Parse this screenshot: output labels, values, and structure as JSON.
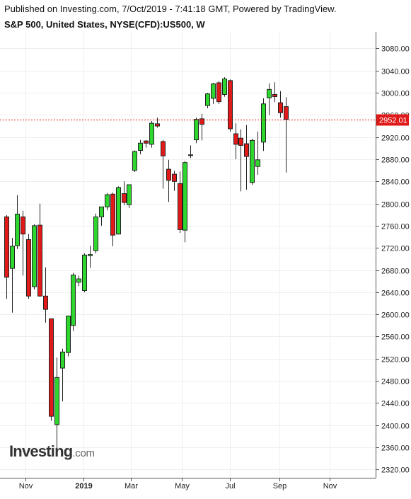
{
  "header": {
    "published": "Published on Investing.com, 7/Oct/2019 - 7:41:18 GMT, Powered by TradingView.",
    "symbol": "S&P 500, United States, NYSE(CFD):US500, W"
  },
  "logo": {
    "brand": "Investing",
    "domain": ".com"
  },
  "colors": {
    "up": "#2ed72e",
    "down": "#e01919",
    "price_line": "#e01919",
    "grid": "#eeeeee"
  },
  "chart_data": {
    "type": "candlestick",
    "interval": "W",
    "ylim": [
      2305,
      3110
    ],
    "y_ticks": [
      2320,
      2360,
      2400,
      2440,
      2480,
      2520,
      2560,
      2600,
      2640,
      2680,
      2720,
      2760,
      2800,
      2840,
      2880,
      2920,
      2960,
      3000,
      3040,
      3080
    ],
    "y_tick_labels": [
      "2320.00",
      "2360.00",
      "2400.00",
      "2440.00",
      "2480.00",
      "2520.00",
      "2560.00",
      "2600.00",
      "2640.00",
      "2680.00",
      "2720.00",
      "2760.00",
      "2800.00",
      "2840.00",
      "2880.00",
      "2920.00",
      "2960.00",
      "3000.00",
      "3040.00",
      "3080.00"
    ],
    "x_labels": [
      {
        "label": "Nov",
        "index": 3.5,
        "bold": false
      },
      {
        "label": "2019",
        "index": 13.8,
        "bold": true
      },
      {
        "label": "Mar",
        "index": 22.3,
        "bold": false
      },
      {
        "label": "May",
        "index": 31.4,
        "bold": false
      },
      {
        "label": "Jul",
        "index": 40.0,
        "bold": false
      },
      {
        "label": "Sep",
        "index": 48.9,
        "bold": false
      },
      {
        "label": "Nov",
        "index": 57.9,
        "bold": false
      }
    ],
    "last_price": 2952.01,
    "last_price_label": "2952.01",
    "candles": [
      {
        "o": 2776,
        "h": 2779,
        "l": 2628,
        "c": 2667
      },
      {
        "o": 2683,
        "h": 2738,
        "l": 2603,
        "c": 2723
      },
      {
        "o": 2724,
        "h": 2815,
        "l": 2718,
        "c": 2781
      },
      {
        "o": 2776,
        "h": 2787,
        "l": 2670,
        "c": 2745
      },
      {
        "o": 2735,
        "h": 2745,
        "l": 2628,
        "c": 2633
      },
      {
        "o": 2650,
        "h": 2763,
        "l": 2645,
        "c": 2760
      },
      {
        "o": 2761,
        "h": 2800,
        "l": 2632,
        "c": 2633
      },
      {
        "o": 2633,
        "h": 2685,
        "l": 2585,
        "c": 2609
      },
      {
        "o": 2592,
        "h": 2592,
        "l": 2408,
        "c": 2416
      },
      {
        "o": 2401,
        "h": 2522,
        "l": 2347,
        "c": 2486
      },
      {
        "o": 2503,
        "h": 2538,
        "l": 2443,
        "c": 2532
      },
      {
        "o": 2531,
        "h": 2598,
        "l": 2524,
        "c": 2597
      },
      {
        "o": 2580,
        "h": 2675,
        "l": 2570,
        "c": 2671
      },
      {
        "o": 2658,
        "h": 2670,
        "l": 2651,
        "c": 2664
      },
      {
        "o": 2643,
        "h": 2710,
        "l": 2640,
        "c": 2707
      },
      {
        "o": 2706,
        "h": 2724,
        "l": 2684,
        "c": 2708
      },
      {
        "o": 2715,
        "h": 2782,
        "l": 2710,
        "c": 2776
      },
      {
        "o": 2776,
        "h": 2792,
        "l": 2760,
        "c": 2794
      },
      {
        "o": 2794,
        "h": 2819,
        "l": 2788,
        "c": 2816
      },
      {
        "o": 2817,
        "h": 2820,
        "l": 2723,
        "c": 2743
      },
      {
        "o": 2745,
        "h": 2831,
        "l": 2744,
        "c": 2829
      },
      {
        "o": 2818,
        "h": 2840,
        "l": 2797,
        "c": 2802
      },
      {
        "o": 2798,
        "h": 2833,
        "l": 2792,
        "c": 2834
      },
      {
        "o": 2860,
        "h": 2896,
        "l": 2857,
        "c": 2894
      },
      {
        "o": 2896,
        "h": 2915,
        "l": 2889,
        "c": 2909
      },
      {
        "o": 2913,
        "h": 2915,
        "l": 2901,
        "c": 2909
      },
      {
        "o": 2907,
        "h": 2949,
        "l": 2901,
        "c": 2945
      },
      {
        "o": 2944,
        "h": 2955,
        "l": 2937,
        "c": 2940
      },
      {
        "o": 2912,
        "h": 2915,
        "l": 2827,
        "c": 2886
      },
      {
        "o": 2862,
        "h": 2879,
        "l": 2803,
        "c": 2842
      },
      {
        "o": 2853,
        "h": 2859,
        "l": 2823,
        "c": 2840
      },
      {
        "o": 2836,
        "h": 2858,
        "l": 2747,
        "c": 2753
      },
      {
        "o": 2752,
        "h": 2877,
        "l": 2730,
        "c": 2874
      },
      {
        "o": 2888,
        "h": 2905,
        "l": 2882,
        "c": 2888
      },
      {
        "o": 2915,
        "h": 2955,
        "l": 2909,
        "c": 2952
      },
      {
        "o": 2953,
        "h": 2962,
        "l": 2914,
        "c": 2943
      },
      {
        "o": 2977,
        "h": 3000,
        "l": 2972,
        "c": 2998
      },
      {
        "o": 2990,
        "h": 3018,
        "l": 2980,
        "c": 3016
      },
      {
        "o": 3018,
        "h": 3021,
        "l": 2980,
        "c": 2984
      },
      {
        "o": 2997,
        "h": 3028,
        "l": 2993,
        "c": 3025
      },
      {
        "o": 3022,
        "h": 3024,
        "l": 2930,
        "c": 2935
      },
      {
        "o": 2926,
        "h": 2945,
        "l": 2880,
        "c": 2907
      },
      {
        "o": 2918,
        "h": 2934,
        "l": 2822,
        "c": 2905
      },
      {
        "o": 2908,
        "h": 2942,
        "l": 2825,
        "c": 2885
      },
      {
        "o": 2838,
        "h": 2917,
        "l": 2834,
        "c": 2914
      },
      {
        "o": 2867,
        "h": 2930,
        "l": 2852,
        "c": 2879
      },
      {
        "o": 2911,
        "h": 2990,
        "l": 2895,
        "c": 2980
      },
      {
        "o": 2991,
        "h": 3017,
        "l": 2960,
        "c": 3006
      },
      {
        "o": 2997,
        "h": 3019,
        "l": 2983,
        "c": 2993
      },
      {
        "o": 2982,
        "h": 3003,
        "l": 2955,
        "c": 2964
      },
      {
        "o": 2975,
        "h": 2992,
        "l": 2856,
        "c": 2952
      }
    ]
  }
}
